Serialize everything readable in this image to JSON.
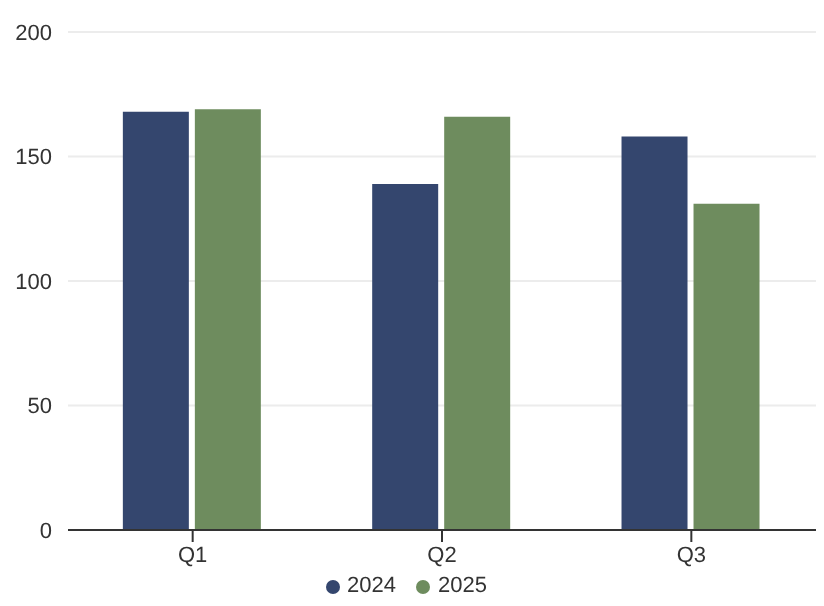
{
  "chart_data": {
    "type": "bar",
    "categories": [
      "Q1",
      "Q2",
      "Q3"
    ],
    "series": [
      {
        "name": "2024",
        "color": "#34466e",
        "values": [
          168,
          139,
          158
        ]
      },
      {
        "name": "2025",
        "color": "#6e8c5e",
        "values": [
          169,
          166,
          131
        ]
      }
    ],
    "ylim": [
      0,
      200
    ],
    "yticks": [
      0,
      50,
      100,
      150,
      200
    ],
    "grid": "y",
    "legend": "bottom"
  }
}
